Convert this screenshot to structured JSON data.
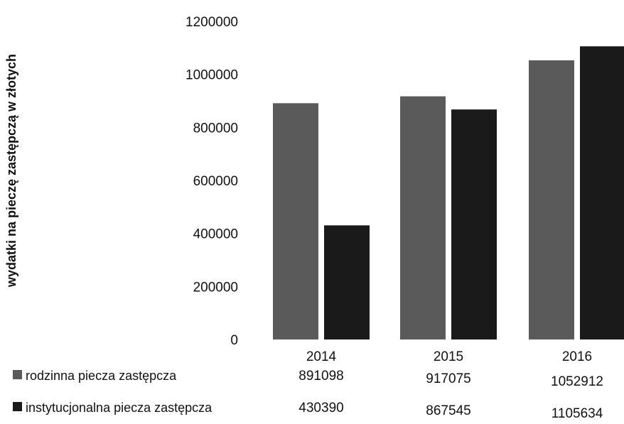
{
  "chart_data": {
    "type": "bar",
    "ylabel": "wydatki na pieczę zastępczą w złotych",
    "categories": [
      "2014",
      "2015",
      "2016"
    ],
    "y_ticks": [
      "0",
      "200000",
      "400000",
      "600000",
      "800000",
      "1000000",
      "1200000"
    ],
    "ylim": [
      0,
      1200000
    ],
    "grid": false,
    "legend_position": "bottom-left (data table)",
    "series": [
      {
        "name": "rodzinna piecza zastępcza",
        "color": "#5a5a5a",
        "values": [
          891098,
          917075,
          1052912
        ],
        "value_labels": [
          "891098",
          "917075",
          "1052912"
        ]
      },
      {
        "name": "instytucjonalna piecza zastępcza",
        "color": "#1a1a1a",
        "values": [
          430390,
          867545,
          1105634
        ],
        "value_labels": [
          "430390",
          "867545",
          "1105634"
        ]
      }
    ]
  }
}
